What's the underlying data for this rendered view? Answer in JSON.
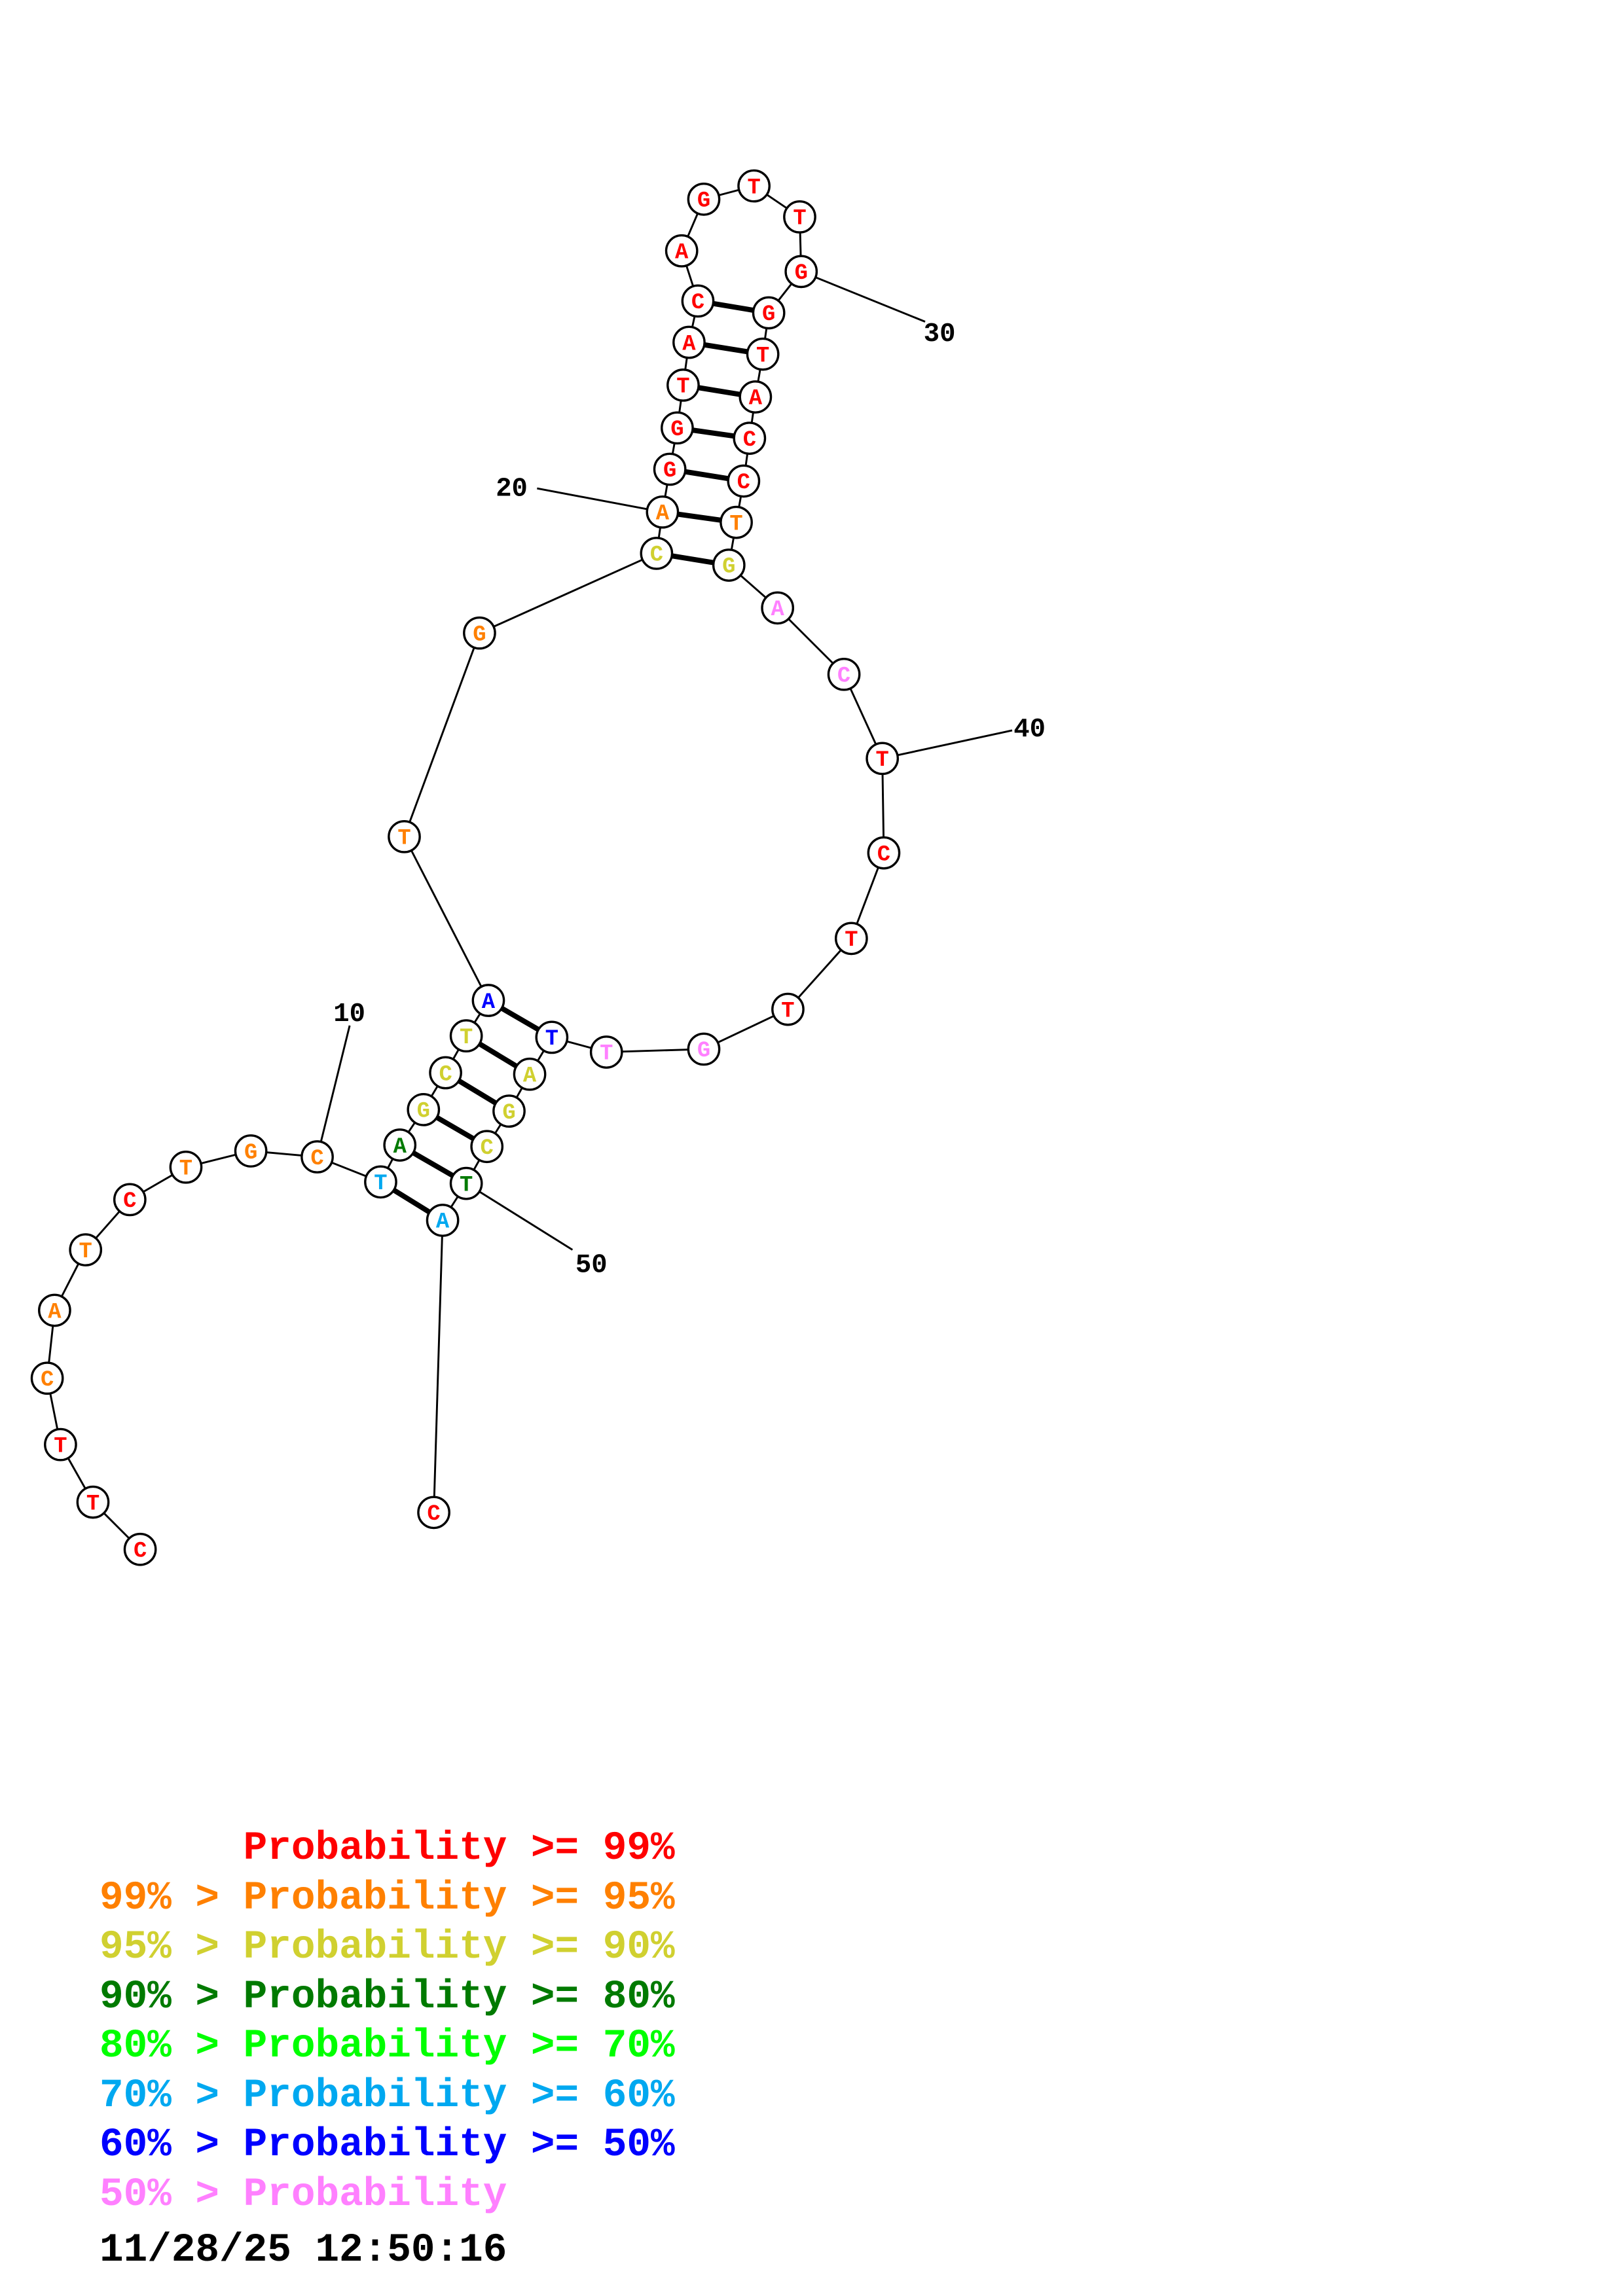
{
  "structure": {
    "sequence": [
      "C",
      "T",
      "T",
      "C",
      "A",
      "T",
      "C",
      "T",
      "G",
      "C",
      "T",
      "A",
      "G",
      "C",
      "T",
      "A",
      "T",
      "G",
      "C",
      "A",
      "G",
      "G",
      "T",
      "A",
      "C",
      "A",
      "G",
      "T",
      "T",
      "G",
      "G",
      "T",
      "A",
      "C",
      "C",
      "T",
      "G",
      "A",
      "C",
      "T",
      "C",
      "T",
      "T",
      "G",
      "T",
      "T",
      "A",
      "G",
      "C",
      "T",
      "A",
      "C"
    ],
    "probability_class": [
      0,
      0,
      0,
      1,
      1,
      1,
      0,
      1,
      1,
      1,
      5,
      3,
      2,
      2,
      2,
      6,
      1,
      1,
      2,
      1,
      0,
      0,
      0,
      0,
      0,
      0,
      0,
      0,
      0,
      0,
      0,
      0,
      0,
      0,
      0,
      1,
      2,
      7,
      7,
      0,
      0,
      0,
      0,
      7,
      7,
      6,
      2,
      2,
      2,
      3,
      5,
      0
    ],
    "base_pairs": [
      [
        11,
        51
      ],
      [
        12,
        50
      ],
      [
        13,
        49
      ],
      [
        14,
        48
      ],
      [
        15,
        47
      ],
      [
        16,
        46
      ],
      [
        19,
        37
      ],
      [
        20,
        36
      ],
      [
        21,
        35
      ],
      [
        22,
        34
      ],
      [
        23,
        33
      ],
      [
        24,
        32
      ],
      [
        25,
        31
      ]
    ],
    "position_labels": [
      "10",
      "20",
      "30",
      "40",
      "50"
    ]
  },
  "colors": [
    "#ff0000",
    "#ff8000",
    "#d0d030",
    "#007a00",
    "#00ff00",
    "#00a8f0",
    "#0000ff",
    "#ff80ff"
  ],
  "legend": [
    {
      "prefix": "    ",
      "label": "Probability",
      "suffix": " >= 99%"
    },
    {
      "prefix": "99% > ",
      "label": "Probability",
      "suffix": " >= 95%"
    },
    {
      "prefix": "95% > ",
      "label": "Probability",
      "suffix": " >= 90%"
    },
    {
      "prefix": "90% > ",
      "label": "Probability",
      "suffix": " >= 80%"
    },
    {
      "prefix": "80% > ",
      "label": "Probability",
      "suffix": " >= 70%"
    },
    {
      "prefix": "70% > ",
      "label": "Probability",
      "suffix": " >= 60%"
    },
    {
      "prefix": "60% > ",
      "label": "Probability",
      "suffix": " >= 50%"
    },
    {
      "prefix": "50% > ",
      "label": "Probability",
      "suffix": ""
    }
  ],
  "timestamp": "11/28/25 12:50:16"
}
